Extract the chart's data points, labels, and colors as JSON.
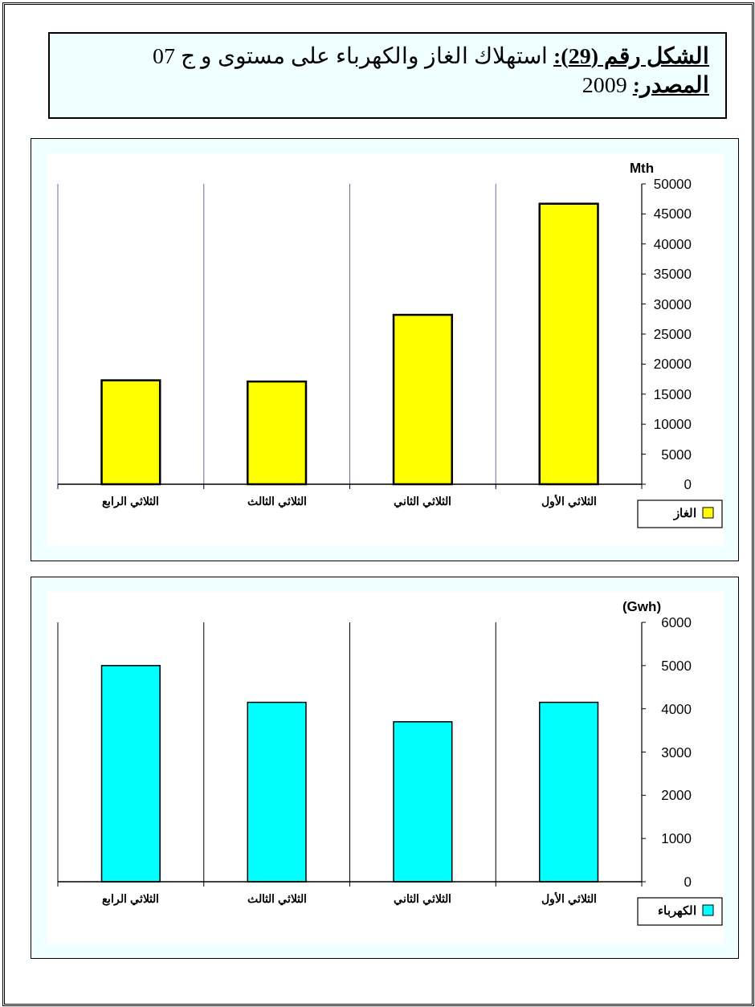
{
  "chart_data": [
    {
      "type": "bar",
      "title": "**الشكل رقم (29):** استهلاك الغاز والكهرباء على مستوى و ج 07",
      "annotations": [
        "**المصدر:** 2009"
      ],
      "categories": [
        "الثلاثي الرابع",
        "الثلاثي الثالث",
        "الثلاثي الثاني",
        "الثلاثي الأول"
      ],
      "series": [
        {
          "name": "الغاز",
          "color": "#ffff00",
          "values": [
            17300,
            17100,
            28200,
            46700
          ]
        }
      ],
      "ylabel": "Mth",
      "ylim": [
        0,
        50000
      ],
      "yticks": [
        0,
        5000,
        10000,
        15000,
        20000,
        25000,
        30000,
        35000,
        40000,
        45000,
        50000
      ],
      "grid": "x",
      "legend": "bottom right"
    },
    {
      "type": "bar",
      "categories": [
        "الثلاثي الرابع",
        "الثلاثي الثالث",
        "الثلاثي الثاني",
        "الثلاثي الأول"
      ],
      "series": [
        {
          "name": "الكهرباء",
          "color": "#00ffff",
          "values": [
            5000,
            4150,
            3700,
            4150
          ]
        }
      ],
      "ylabel": "(Gwh)",
      "ylim": [
        0,
        6000
      ],
      "yticks": [
        0,
        1000,
        2000,
        3000,
        4000,
        5000,
        6000
      ],
      "grid": "x",
      "legend": "bottom right"
    }
  ]
}
